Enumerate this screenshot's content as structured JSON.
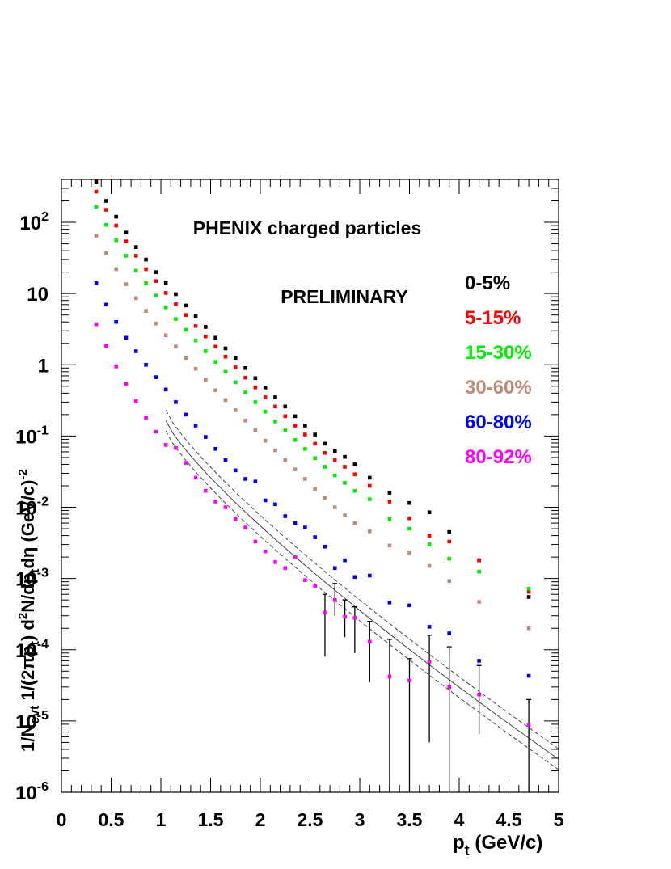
{
  "chart_data": {
    "type": "scatter",
    "title": "PHENIX charged particles",
    "annotation": "PRELIMINARY",
    "xlabel_main": "p",
    "xlabel_sub": "t",
    "xlabel_unit": " (GeV/c)",
    "ylabel": "1/N_evt 1/(2πp_t) d²N/dp_t dη (GeV/c)^-2",
    "xlim": [
      0,
      5
    ],
    "ylim": [
      1e-06,
      400
    ],
    "yscale": "log",
    "legend_position": "right",
    "x_tick_labels": [
      "0",
      "0.5",
      "1",
      "1.5",
      "2",
      "2.5",
      "3",
      "3.5",
      "4",
      "4.5",
      "5"
    ],
    "y_tick_labels": [
      {
        "base": "10",
        "exp": "-6"
      },
      {
        "base": "10",
        "exp": "-5"
      },
      {
        "base": "10",
        "exp": "-4"
      },
      {
        "base": "10",
        "exp": "-3"
      },
      {
        "base": "10",
        "exp": "-2"
      },
      {
        "base": "10",
        "exp": "-1"
      },
      {
        "base": "1",
        "exp": ""
      },
      {
        "base": "10",
        "exp": ""
      },
      {
        "base": "10",
        "exp": "2"
      }
    ],
    "series": [
      {
        "name": "0-5%",
        "color": "#000000",
        "points": [
          [
            0.35,
            370
          ],
          [
            0.45,
            200
          ],
          [
            0.55,
            120
          ],
          [
            0.65,
            72
          ],
          [
            0.75,
            45
          ],
          [
            0.85,
            30
          ],
          [
            0.95,
            20
          ],
          [
            1.05,
            14
          ],
          [
            1.15,
            9.8
          ],
          [
            1.25,
            6.8
          ],
          [
            1.35,
            4.8
          ],
          [
            1.45,
            3.4
          ],
          [
            1.55,
            2.4
          ],
          [
            1.65,
            1.7
          ],
          [
            1.75,
            1.25
          ],
          [
            1.85,
            0.9
          ],
          [
            1.95,
            0.65
          ],
          [
            2.05,
            0.48
          ],
          [
            2.15,
            0.35
          ],
          [
            2.25,
            0.26
          ],
          [
            2.35,
            0.19
          ],
          [
            2.45,
            0.14
          ],
          [
            2.55,
            0.105
          ],
          [
            2.65,
            0.078
          ],
          [
            2.75,
            0.062
          ],
          [
            2.85,
            0.051
          ],
          [
            2.95,
            0.04
          ],
          [
            3.1,
            0.026
          ],
          [
            3.3,
            0.016
          ],
          [
            3.5,
            0.0115
          ],
          [
            3.7,
            0.0085
          ],
          [
            3.9,
            0.0045
          ],
          [
            4.2,
            0.0018
          ],
          [
            4.7,
            0.00055
          ]
        ]
      },
      {
        "name": "5-15%",
        "color": "#ff0000",
        "points": [
          [
            0.35,
            270
          ],
          [
            0.45,
            150
          ],
          [
            0.55,
            90
          ],
          [
            0.65,
            54
          ],
          [
            0.75,
            34
          ],
          [
            0.85,
            22
          ],
          [
            0.95,
            15
          ],
          [
            1.05,
            10.2
          ],
          [
            1.15,
            7.1
          ],
          [
            1.25,
            5.0
          ],
          [
            1.35,
            3.5
          ],
          [
            1.45,
            2.5
          ],
          [
            1.55,
            1.8
          ],
          [
            1.65,
            1.3
          ],
          [
            1.75,
            0.92
          ],
          [
            1.85,
            0.66
          ],
          [
            1.95,
            0.48
          ],
          [
            2.05,
            0.35
          ],
          [
            2.15,
            0.26
          ],
          [
            2.25,
            0.19
          ],
          [
            2.35,
            0.14
          ],
          [
            2.45,
            0.105
          ],
          [
            2.55,
            0.078
          ],
          [
            2.65,
            0.058
          ],
          [
            2.75,
            0.046
          ],
          [
            2.85,
            0.037
          ],
          [
            2.95,
            0.029
          ],
          [
            3.1,
            0.02
          ],
          [
            3.3,
            0.012
          ],
          [
            3.5,
            0.007
          ],
          [
            3.7,
            0.004
          ],
          [
            3.9,
            0.0033
          ],
          [
            4.2,
            0.0018
          ],
          [
            4.7,
            0.00065
          ]
        ]
      },
      {
        "name": "15-30%",
        "color": "#00ee00",
        "points": [
          [
            0.35,
            165
          ],
          [
            0.45,
            92
          ],
          [
            0.55,
            56
          ],
          [
            0.65,
            34
          ],
          [
            0.75,
            21
          ],
          [
            0.85,
            14
          ],
          [
            0.95,
            9.4
          ],
          [
            1.05,
            6.4
          ],
          [
            1.15,
            4.4
          ],
          [
            1.25,
            3.1
          ],
          [
            1.35,
            2.2
          ],
          [
            1.45,
            1.55
          ],
          [
            1.55,
            1.1
          ],
          [
            1.65,
            0.8
          ],
          [
            1.75,
            0.57
          ],
          [
            1.85,
            0.41
          ],
          [
            1.95,
            0.3
          ],
          [
            2.05,
            0.22
          ],
          [
            2.15,
            0.16
          ],
          [
            2.25,
            0.12
          ],
          [
            2.35,
            0.088
          ],
          [
            2.45,
            0.066
          ],
          [
            2.55,
            0.049
          ],
          [
            2.65,
            0.037
          ],
          [
            2.75,
            0.028
          ],
          [
            2.85,
            0.022
          ],
          [
            2.95,
            0.017
          ],
          [
            3.1,
            0.013
          ],
          [
            3.3,
            0.0068
          ],
          [
            3.5,
            0.005
          ],
          [
            3.7,
            0.003
          ],
          [
            3.9,
            0.0019
          ],
          [
            4.2,
            0.00125
          ],
          [
            4.7,
            0.00072
          ]
        ]
      },
      {
        "name": "30-60%",
        "color": "#c08a78",
        "points": [
          [
            0.35,
            65
          ],
          [
            0.45,
            37
          ],
          [
            0.55,
            22
          ],
          [
            0.65,
            13.5
          ],
          [
            0.75,
            8.6
          ],
          [
            0.85,
            5.7
          ],
          [
            0.95,
            3.8
          ],
          [
            1.05,
            2.6
          ],
          [
            1.15,
            1.8
          ],
          [
            1.25,
            1.25
          ],
          [
            1.35,
            0.88
          ],
          [
            1.45,
            0.62
          ],
          [
            1.55,
            0.44
          ],
          [
            1.65,
            0.32
          ],
          [
            1.75,
            0.23
          ],
          [
            1.85,
            0.165
          ],
          [
            1.95,
            0.12
          ],
          [
            2.05,
            0.086
          ],
          [
            2.15,
            0.063
          ],
          [
            2.25,
            0.046
          ],
          [
            2.35,
            0.034
          ],
          [
            2.45,
            0.025
          ],
          [
            2.55,
            0.018
          ],
          [
            2.65,
            0.0135
          ],
          [
            2.75,
            0.01
          ],
          [
            2.85,
            0.0077
          ],
          [
            2.95,
            0.006
          ],
          [
            3.1,
            0.0046
          ],
          [
            3.3,
            0.0029
          ],
          [
            3.5,
            0.0023
          ],
          [
            3.7,
            0.0015
          ],
          [
            3.9,
            0.00092
          ],
          [
            4.2,
            0.00047
          ],
          [
            4.7,
            0.0002
          ]
        ]
      },
      {
        "name": "60-80%",
        "color": "#0000ee",
        "points": [
          [
            0.35,
            14
          ],
          [
            0.45,
            7
          ],
          [
            0.55,
            4
          ],
          [
            0.65,
            2.4
          ],
          [
            0.75,
            1.55
          ],
          [
            0.85,
            1.0
          ],
          [
            0.95,
            0.67
          ],
          [
            1.05,
            0.45
          ],
          [
            1.15,
            0.3
          ],
          [
            1.25,
            0.2
          ],
          [
            1.35,
            0.14
          ],
          [
            1.45,
            0.097
          ],
          [
            1.55,
            0.066
          ],
          [
            1.65,
            0.046
          ],
          [
            1.75,
            0.033
          ],
          [
            1.85,
            0.025
          ],
          [
            1.95,
            0.023
          ],
          [
            2.05,
            0.0125
          ],
          [
            2.15,
            0.011
          ],
          [
            2.25,
            0.0075
          ],
          [
            2.35,
            0.006
          ],
          [
            2.45,
            0.0052
          ],
          [
            2.55,
            0.0038
          ],
          [
            2.65,
            0.0028
          ],
          [
            2.75,
            0.0014
          ],
          [
            2.85,
            0.0018
          ],
          [
            2.95,
            0.00105
          ],
          [
            3.1,
            0.0011
          ],
          [
            3.3,
            0.00046
          ],
          [
            3.5,
            0.00042
          ],
          [
            3.7,
            0.00021
          ],
          [
            3.9,
            0.00017
          ],
          [
            4.2,
            7e-05
          ],
          [
            4.7,
            4.3e-05
          ]
        ]
      },
      {
        "name": "80-92%",
        "color": "#ff00ff",
        "points": [
          [
            0.35,
            3.7
          ],
          [
            0.45,
            1.85
          ],
          [
            0.55,
            0.95
          ],
          [
            0.65,
            0.54
          ],
          [
            0.75,
            0.31
          ],
          [
            0.85,
            0.18
          ],
          [
            0.95,
            0.115
          ],
          [
            1.05,
            0.075
          ],
          [
            1.15,
            0.068
          ],
          [
            1.25,
            0.042
          ],
          [
            1.35,
            0.026
          ],
          [
            1.45,
            0.017
          ],
          [
            1.55,
            0.012
          ],
          [
            1.65,
            0.01
          ],
          [
            1.75,
            0.0068
          ],
          [
            1.85,
            0.0052
          ],
          [
            1.95,
            0.0033
          ],
          [
            2.05,
            0.0024
          ],
          [
            2.15,
            0.0017
          ],
          [
            2.25,
            0.0014
          ],
          [
            2.35,
            0.002
          ],
          [
            2.45,
            0.00095
          ],
          [
            2.55,
            0.00078
          ],
          [
            2.65,
            0.00033
          ],
          [
            2.75,
            0.0005
          ],
          [
            2.85,
            0.00029
          ],
          [
            2.95,
            0.00028
          ],
          [
            3.1,
            0.00013
          ],
          [
            3.3,
            4.2e-05
          ],
          [
            3.5,
            3.7e-05
          ],
          [
            3.7,
            6.8e-05
          ],
          [
            3.9,
            3e-05
          ],
          [
            4.2,
            2.35e-05
          ],
          [
            4.7,
            8.8e-06
          ]
        ]
      }
    ],
    "error_bars": [
      {
        "x": 3.3,
        "low": 1e-06,
        "high": 0.00014
      },
      {
        "x": 3.5,
        "low": 1e-06,
        "high": 7.5e-05
      },
      {
        "x": 3.7,
        "low": 5e-06,
        "high": 0.00016
      },
      {
        "x": 3.9,
        "low": 1e-06,
        "high": 0.00011
      },
      {
        "x": 4.2,
        "low": 6.5e-06,
        "high": 6e-05
      },
      {
        "x": 4.7,
        "low": 1e-06,
        "high": 2e-05
      },
      {
        "x": 3.1,
        "low": 3.5e-05,
        "high": 0.00025
      },
      {
        "x": 2.95,
        "low": 9e-05,
        "high": 0.0004
      },
      {
        "x": 2.85,
        "low": 0.00015,
        "high": 0.0005
      },
      {
        "x": 2.65,
        "low": 8e-05,
        "high": 0.0006
      },
      {
        "x": 2.75,
        "low": 0.0003,
        "high": 0.00085
      }
    ],
    "fit_curve": {
      "x_start": 1.05,
      "x_end": 5.0,
      "y_start": 0.165,
      "y_end": 2.9e-06,
      "band_factor": 1.4
    }
  }
}
